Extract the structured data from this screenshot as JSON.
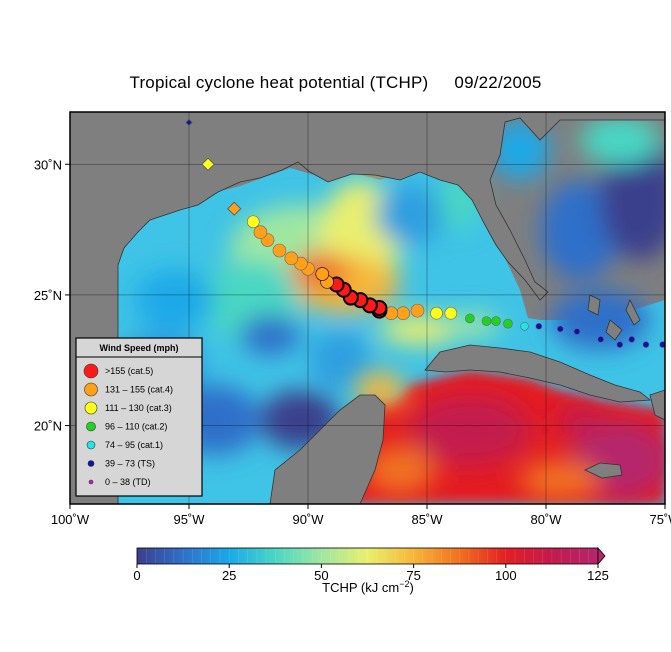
{
  "title": {
    "text": "Tropical cyclone heat potential (TCHP)",
    "date": "09/22/2005"
  },
  "map": {
    "lon_range": [
      -100,
      -75
    ],
    "lat_range": [
      17,
      32
    ],
    "x_ticks": [
      {
        "value": -100,
        "label": "100˚W"
      },
      {
        "value": -95,
        "label": "95˚W"
      },
      {
        "value": -90,
        "label": "90˚W"
      },
      {
        "value": -85,
        "label": "85˚W"
      },
      {
        "value": -80,
        "label": "80˚W"
      },
      {
        "value": -75,
        "label": "75˚W"
      }
    ],
    "y_ticks": [
      {
        "value": 20,
        "label": "20˚N"
      },
      {
        "value": 25,
        "label": "25˚N"
      },
      {
        "value": 30,
        "label": "30˚N"
      }
    ],
    "colors": {
      "land": "#7f7f7f",
      "frame": "#000000"
    }
  },
  "legend": {
    "title": "Wind Speed (mph)",
    "items": [
      {
        "label": ">155 (cat.5)",
        "color": "#ff1a1a",
        "size": 7
      },
      {
        "label": "131 – 155 (cat.4)",
        "color": "#ff9f1a",
        "size": 6.5
      },
      {
        "label": "111 – 130 (cat.3)",
        "color": "#ffff1a",
        "size": 6
      },
      {
        "label": "96 – 110 (cat.2)",
        "color": "#1fd41f",
        "size": 4.5
      },
      {
        "label": "74 – 95 (cat.1)",
        "color": "#1fe7e7",
        "size": 4
      },
      {
        "label": "39 – 73 (TS)",
        "color": "#1010b0",
        "size": 3
      },
      {
        "label": "0 – 38 (TD)",
        "color": "#c020c0",
        "size": 2
      }
    ]
  },
  "track": [
    {
      "lon": -75.1,
      "lat": 23.1,
      "cat": "TS",
      "shape": "circle"
    },
    {
      "lon": -75.8,
      "lat": 23.1,
      "cat": "TS",
      "shape": "circle"
    },
    {
      "lon": -76.4,
      "lat": 23.3,
      "cat": "TS",
      "shape": "circle"
    },
    {
      "lon": -76.9,
      "lat": 23.1,
      "cat": "TS",
      "shape": "circle"
    },
    {
      "lon": -77.7,
      "lat": 23.3,
      "cat": "TS",
      "shape": "circle"
    },
    {
      "lon": -78.7,
      "lat": 23.6,
      "cat": "TS",
      "shape": "circle"
    },
    {
      "lon": -79.4,
      "lat": 23.7,
      "cat": "TS",
      "shape": "circle"
    },
    {
      "lon": -80.3,
      "lat": 23.8,
      "cat": "TS",
      "shape": "circle"
    },
    {
      "lon": -80.9,
      "lat": 23.8,
      "cat": "cat.1",
      "shape": "circle"
    },
    {
      "lon": -81.6,
      "lat": 23.9,
      "cat": "cat.2",
      "shape": "circle"
    },
    {
      "lon": -82.1,
      "lat": 24.0,
      "cat": "cat.2",
      "shape": "circle"
    },
    {
      "lon": -82.5,
      "lat": 24.0,
      "cat": "cat.2",
      "shape": "circle"
    },
    {
      "lon": -83.2,
      "lat": 24.1,
      "cat": "cat.2",
      "shape": "circle"
    },
    {
      "lon": -84.0,
      "lat": 24.3,
      "cat": "cat.3",
      "shape": "circle"
    },
    {
      "lon": -84.6,
      "lat": 24.3,
      "cat": "cat.3",
      "shape": "circle"
    },
    {
      "lon": -85.4,
      "lat": 24.4,
      "cat": "cat.4",
      "shape": "circle"
    },
    {
      "lon": -86.0,
      "lat": 24.3,
      "cat": "cat.4",
      "shape": "circle"
    },
    {
      "lon": -86.5,
      "lat": 24.3,
      "cat": "cat.4",
      "shape": "circle"
    },
    {
      "lon": -87.0,
      "lat": 24.4,
      "cat": "cat.5",
      "shape": "circle"
    },
    {
      "lon": -87.0,
      "lat": 24.5,
      "cat": "cat.5",
      "shape": "circle"
    },
    {
      "lon": -87.4,
      "lat": 24.6,
      "cat": "cat.5",
      "shape": "circle"
    },
    {
      "lon": -87.8,
      "lat": 24.8,
      "cat": "cat.5",
      "shape": "circle"
    },
    {
      "lon": -88.2,
      "lat": 24.9,
      "cat": "cat.5",
      "shape": "circle"
    },
    {
      "lon": -88.5,
      "lat": 25.2,
      "cat": "cat.5",
      "shape": "circle"
    },
    {
      "lon": -88.8,
      "lat": 25.4,
      "cat": "cat.5",
      "shape": "circle"
    },
    {
      "lon": -89.2,
      "lat": 25.5,
      "cat": "cat.4",
      "shape": "circle"
    },
    {
      "lon": -89.4,
      "lat": 25.8,
      "cat": "cat.4",
      "shape": "circle"
    },
    {
      "lon": -90.0,
      "lat": 26.0,
      "cat": "cat.4",
      "shape": "circle"
    },
    {
      "lon": -90.3,
      "lat": 26.2,
      "cat": "cat.4",
      "shape": "circle"
    },
    {
      "lon": -90.7,
      "lat": 26.4,
      "cat": "cat.4",
      "shape": "circle"
    },
    {
      "lon": -91.2,
      "lat": 26.7,
      "cat": "cat.4",
      "shape": "circle"
    },
    {
      "lon": -91.7,
      "lat": 27.1,
      "cat": "cat.4",
      "shape": "circle"
    },
    {
      "lon": -92.0,
      "lat": 27.4,
      "cat": "cat.4",
      "shape": "circle"
    },
    {
      "lon": -92.3,
      "lat": 27.8,
      "cat": "cat.3",
      "shape": "circle"
    },
    {
      "lon": -93.1,
      "lat": 28.3,
      "cat": "cat.4",
      "shape": "diamond"
    },
    {
      "lon": -94.2,
      "lat": 30.0,
      "cat": "cat.3",
      "shape": "diamond"
    },
    {
      "lon": -95.0,
      "lat": 31.6,
      "cat": "TS",
      "shape": "diamond"
    }
  ],
  "colorbar": {
    "min": 0,
    "max": 125,
    "ticks": [
      "0",
      "25",
      "50",
      "75",
      "100",
      "125"
    ],
    "label": "TCHP (kJ cm",
    "label_sup": "−2",
    "label_end": ")",
    "stops": [
      "#3b3f8c",
      "#2f70c9",
      "#1aa9e8",
      "#4ad7c3",
      "#9fe7a1",
      "#e9ef6e",
      "#f6b63a",
      "#f07020",
      "#e31f24",
      "#c21a4d",
      "#b5266a"
    ]
  }
}
